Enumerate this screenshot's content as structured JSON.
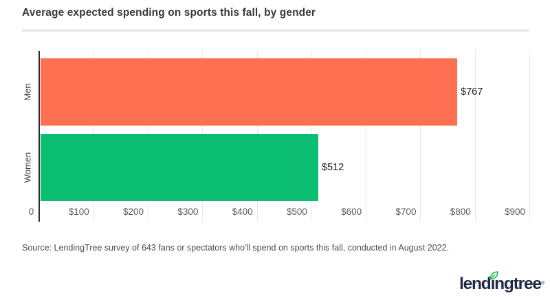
{
  "page": {
    "source": "Source: LendingTree survey of 643 fans or spectators who'll spend on sports this fall, conducted in August 2022.",
    "logo": {
      "text": "lendingtree",
      "registered": "®",
      "navy": "#1e2a47",
      "leaf_green": "#2fbe5f"
    }
  },
  "chart_data": {
    "type": "bar",
    "orientation": "horizontal",
    "title": "Average expected spending on sports this fall, by gender",
    "categories": [
      "Men",
      "Women"
    ],
    "values": [
      767,
      512
    ],
    "value_labels": [
      "$767",
      "$512"
    ],
    "bar_colors": [
      "#FF7052",
      "#0CBE72"
    ],
    "xlabel": "",
    "ylabel": "",
    "xlim": [
      0,
      900
    ],
    "x_ticks": [
      {
        "value": 0,
        "label": "0"
      },
      {
        "value": 100,
        "label": "$100"
      },
      {
        "value": 200,
        "label": "$200"
      },
      {
        "value": 300,
        "label": "$300"
      },
      {
        "value": 400,
        "label": "$400"
      },
      {
        "value": 500,
        "label": "$500"
      },
      {
        "value": 600,
        "label": "$600"
      },
      {
        "value": 700,
        "label": "$700"
      },
      {
        "value": 800,
        "label": "$800"
      },
      {
        "value": 900,
        "label": "$900"
      }
    ],
    "grid": "vertical",
    "gridline_color": "#e7e7e7",
    "axis_color": "#2e2e2e",
    "legend": "none"
  }
}
